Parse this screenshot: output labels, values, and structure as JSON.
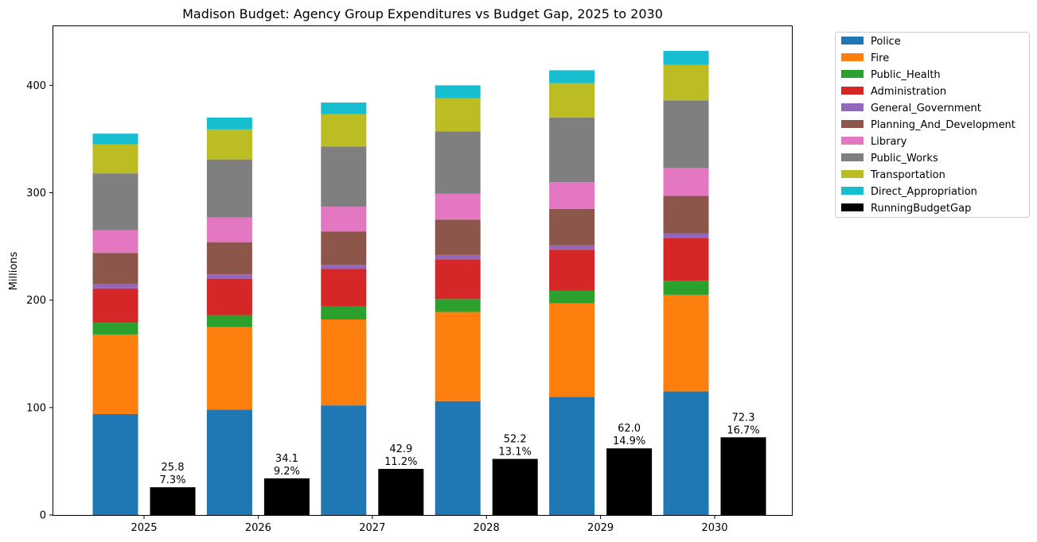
{
  "chart_data": {
    "type": "bar",
    "title": "Madison Budget: Agency Group Expenditures vs Budget Gap, 2025 to 2030",
    "xlabel": "",
    "ylabel": "Millions",
    "ylim": [
      0,
      455
    ],
    "yticks": [
      0,
      100,
      200,
      300,
      400
    ],
    "grid": false,
    "legend_position": "outside top-right",
    "categories": [
      "2025",
      "2026",
      "2027",
      "2028",
      "2029",
      "2030"
    ],
    "stacked_series": [
      {
        "name": "Police",
        "color": "#1f77b4",
        "values": [
          94,
          98,
          102,
          106,
          110,
          115
        ]
      },
      {
        "name": "Fire",
        "color": "#ff7f0e",
        "values": [
          74,
          77,
          80,
          83,
          87,
          90
        ]
      },
      {
        "name": "Public_Health",
        "color": "#2ca02c",
        "values": [
          11,
          11,
          12,
          12,
          12,
          13
        ]
      },
      {
        "name": "Administration",
        "color": "#d62728",
        "values": [
          32,
          34,
          35,
          37,
          38,
          40
        ]
      },
      {
        "name": "General_Government",
        "color": "#9467bd",
        "values": [
          4,
          4,
          4,
          4,
          4,
          4
        ]
      },
      {
        "name": "Planning_And_Development",
        "color": "#8c564b",
        "values": [
          29,
          30,
          31,
          33,
          34,
          35
        ]
      },
      {
        "name": "Library",
        "color": "#e377c2",
        "values": [
          21,
          23,
          23,
          24,
          25,
          26
        ]
      },
      {
        "name": "Public_Works",
        "color": "#7f7f7f",
        "values": [
          53,
          54,
          56,
          58,
          60,
          63
        ]
      },
      {
        "name": "Transportation",
        "color": "#bcbd22",
        "values": [
          27,
          28,
          30,
          31,
          32,
          33
        ]
      },
      {
        "name": "Direct_Appropriation",
        "color": "#17becf",
        "values": [
          10,
          11,
          11,
          12,
          12,
          13
        ]
      }
    ],
    "gap_series": {
      "name": "RunningBudgetGap",
      "color": "#000000",
      "values": [
        25.8,
        34.1,
        42.9,
        52.2,
        62.0,
        72.3
      ],
      "labels": [
        "25.8",
        "34.1",
        "42.9",
        "52.2",
        "62.0",
        "72.3"
      ],
      "pct_labels": [
        "7.3%",
        "9.2%",
        "11.2%",
        "13.1%",
        "14.9%",
        "16.7%"
      ]
    }
  }
}
